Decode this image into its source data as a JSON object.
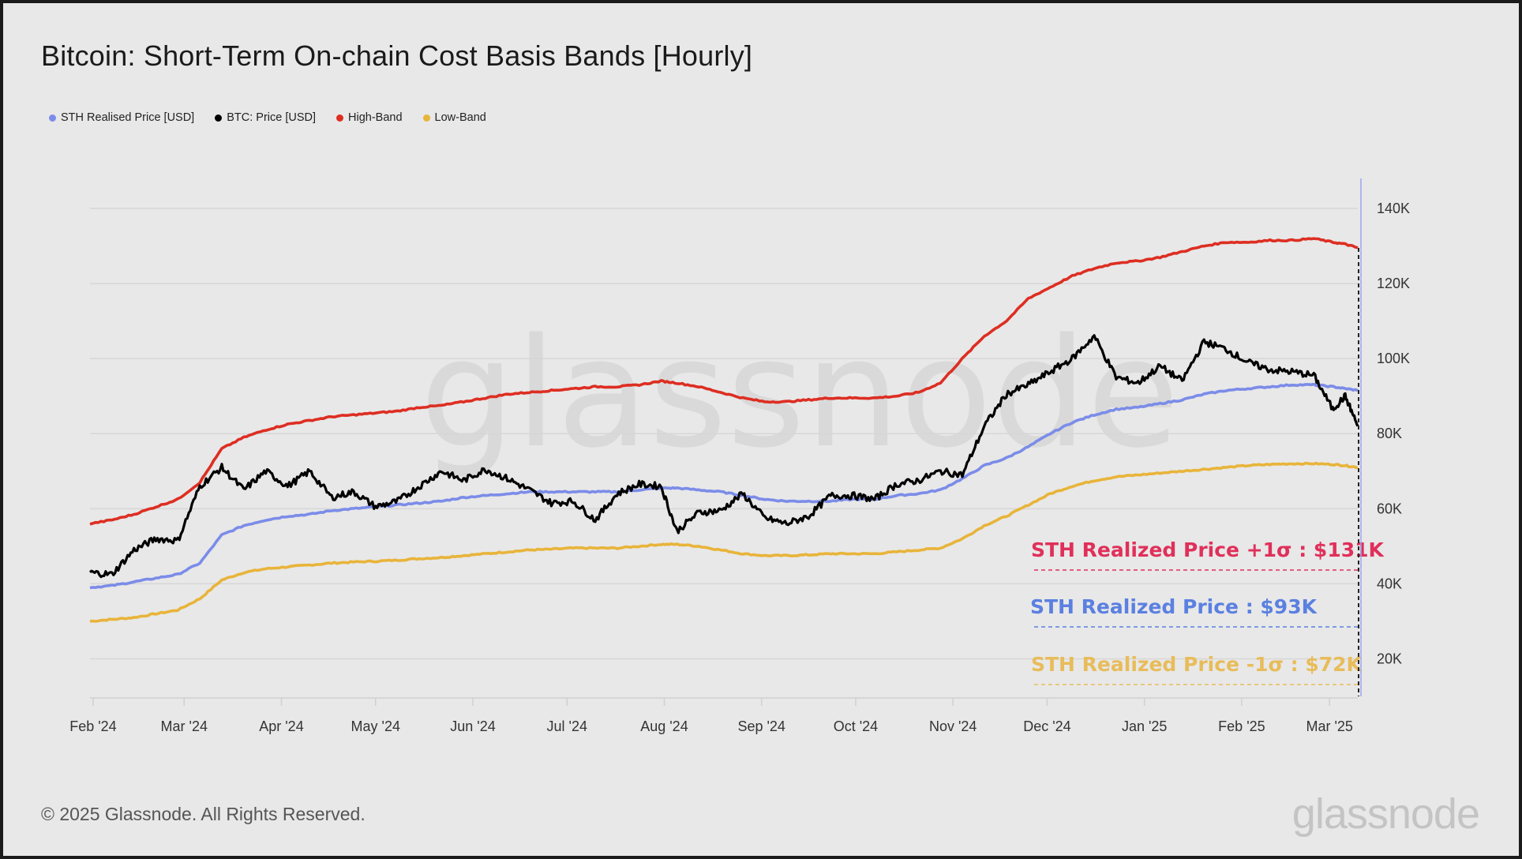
{
  "title": "Bitcoin: Short-Term On-chain Cost Basis Bands [Hourly]",
  "legend": [
    {
      "label": "STH Realised Price [USD]",
      "color": "#7b8ce8"
    },
    {
      "label": "BTC: Price [USD]",
      "color": "#000000"
    },
    {
      "label": "High-Band",
      "color": "#dd2e22"
    },
    {
      "label": "Low-Band",
      "color": "#e8b43a"
    }
  ],
  "footer": {
    "copyright": "© 2025 Glassnode. All Rights Reserved.",
    "logo": "glassnode"
  },
  "watermark": "glassnode",
  "chart_data": {
    "type": "line",
    "title": "Bitcoin: Short-Term On-chain Cost Basis Bands [Hourly]",
    "xlabel": "",
    "ylabel": "",
    "y_axis_position": "right",
    "ylim": [
      10000,
      148000
    ],
    "y_ticks": [
      20000,
      40000,
      60000,
      80000,
      100000,
      120000,
      140000
    ],
    "y_tick_labels": [
      "20K",
      "40K",
      "60K",
      "80K",
      "100K",
      "120K",
      "140K"
    ],
    "x_range": [
      "2024-01-31",
      "2025-03-10"
    ],
    "x_ticks": [
      "2024-02-01",
      "2024-03-01",
      "2024-04-01",
      "2024-05-01",
      "2024-06-01",
      "2024-07-01",
      "2024-08-01",
      "2024-09-01",
      "2024-10-01",
      "2024-11-01",
      "2024-12-01",
      "2025-01-01",
      "2025-02-01",
      "2025-03-01"
    ],
    "x_tick_labels": [
      "Feb '24",
      "Mar '24",
      "Apr '24",
      "May '24",
      "Jun '24",
      "Jul '24",
      "Aug '24",
      "Sep '24",
      "Oct '24",
      "Nov '24",
      "Dec '24",
      "Jan '25",
      "Feb '25",
      "Mar '25"
    ],
    "grid": true,
    "legend_position": "top-left",
    "x": [
      "2024-01-31",
      "2024-02-07",
      "2024-02-14",
      "2024-02-21",
      "2024-02-28",
      "2024-03-06",
      "2024-03-13",
      "2024-03-20",
      "2024-03-27",
      "2024-04-03",
      "2024-04-10",
      "2024-04-17",
      "2024-04-24",
      "2024-05-01",
      "2024-05-08",
      "2024-05-15",
      "2024-05-22",
      "2024-05-29",
      "2024-06-05",
      "2024-06-12",
      "2024-06-19",
      "2024-06-26",
      "2024-07-03",
      "2024-07-10",
      "2024-07-17",
      "2024-07-24",
      "2024-07-31",
      "2024-08-05",
      "2024-08-12",
      "2024-08-19",
      "2024-08-26",
      "2024-09-02",
      "2024-09-09",
      "2024-09-16",
      "2024-09-23",
      "2024-09-30",
      "2024-10-07",
      "2024-10-14",
      "2024-10-21",
      "2024-10-28",
      "2024-11-04",
      "2024-11-11",
      "2024-11-18",
      "2024-11-25",
      "2024-12-02",
      "2024-12-09",
      "2024-12-16",
      "2024-12-23",
      "2024-12-30",
      "2025-01-06",
      "2025-01-13",
      "2025-01-20",
      "2025-01-27",
      "2025-02-03",
      "2025-02-10",
      "2025-02-17",
      "2025-02-24",
      "2025-03-02",
      "2025-03-06",
      "2025-03-10"
    ],
    "series": [
      {
        "name": "High-Band",
        "color": "#dd2e22",
        "values": [
          56000,
          57000,
          58500,
          60500,
          62500,
          67000,
          76000,
          79000,
          81000,
          82500,
          83500,
          84500,
          85000,
          85500,
          86000,
          87000,
          87500,
          88500,
          89500,
          90500,
          91000,
          91500,
          92000,
          92500,
          92500,
          93000,
          94000,
          93500,
          92500,
          91000,
          89500,
          88500,
          88500,
          89000,
          89500,
          89500,
          89500,
          90000,
          91000,
          93500,
          100000,
          106000,
          110000,
          116000,
          119000,
          122000,
          124000,
          125500,
          126000,
          127000,
          128500,
          130000,
          131000,
          131000,
          131500,
          131500,
          132000,
          131000,
          130500,
          129500
        ]
      },
      {
        "name": "BTC: Price [USD]",
        "color": "#000000",
        "values": [
          43000,
          42500,
          49000,
          52000,
          51500,
          66000,
          71000,
          65000,
          70000,
          66000,
          70000,
          63000,
          64500,
          60500,
          62000,
          66000,
          70000,
          67500,
          70500,
          68000,
          65000,
          61500,
          62000,
          57000,
          64000,
          66500,
          66000,
          54000,
          59000,
          59500,
          64000,
          57500,
          56000,
          58000,
          63500,
          63500,
          62500,
          66500,
          67500,
          70000,
          69000,
          82000,
          90500,
          93000,
          96500,
          100000,
          106000,
          95000,
          93500,
          98000,
          94000,
          104500,
          102500,
          99000,
          97000,
          96500,
          95500,
          86500,
          90000,
          82000
        ]
      },
      {
        "name": "STH Realised Price [USD]",
        "color": "#7b8ce8",
        "values": [
          39000,
          39500,
          40500,
          41500,
          42500,
          45500,
          53000,
          55500,
          57000,
          58000,
          58500,
          59500,
          60000,
          60500,
          61000,
          61500,
          62000,
          63000,
          63500,
          64000,
          64500,
          64500,
          64500,
          64500,
          64500,
          65000,
          65500,
          65500,
          65000,
          64500,
          63500,
          62500,
          62000,
          62000,
          62000,
          62500,
          62500,
          63500,
          64000,
          65000,
          68000,
          71500,
          73500,
          76500,
          80000,
          83000,
          85000,
          86500,
          87000,
          88000,
          89000,
          90500,
          91500,
          92000,
          92500,
          93000,
          93000,
          92500,
          92000,
          91500
        ]
      },
      {
        "name": "Low-Band",
        "color": "#e8b43a",
        "values": [
          30000,
          30500,
          31000,
          32000,
          33000,
          36000,
          41000,
          43000,
          44000,
          44500,
          45000,
          45500,
          45800,
          46000,
          46300,
          46700,
          47000,
          47500,
          48000,
          48500,
          49000,
          49200,
          49500,
          49500,
          49500,
          50000,
          50500,
          50500,
          50000,
          49000,
          48000,
          47500,
          47500,
          47700,
          48000,
          48000,
          48000,
          48500,
          49000,
          49500,
          52000,
          55500,
          58000,
          61000,
          64000,
          66000,
          67500,
          68500,
          69000,
          69500,
          70000,
          70500,
          71000,
          71500,
          71800,
          72000,
          72000,
          71800,
          71500,
          71000
        ]
      }
    ],
    "annotations": [
      {
        "text": "STH Realized Price +1σ : $131K",
        "value": 131000,
        "color": "#e0305a"
      },
      {
        "text": "STH Realized Price  : $93K",
        "value": 93000,
        "color": "#5b80e0"
      },
      {
        "text": "STH Realized Price -1σ : $72K",
        "value": 72000,
        "color": "#e8bc5a"
      }
    ]
  }
}
